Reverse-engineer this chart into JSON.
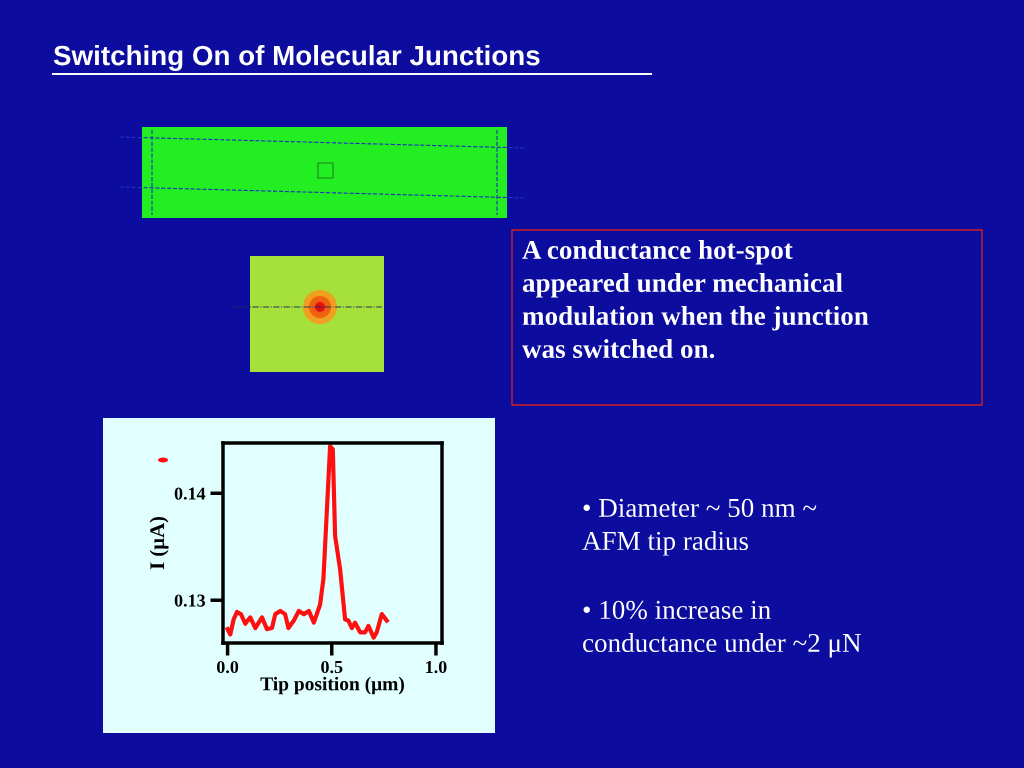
{
  "chart_data": {
    "type": "line",
    "title": "Switching On of Molecular Junctions",
    "xlabel": "Tip position (μm)",
    "ylabel": "I (μA)",
    "annotations": [
      "A conductance hot-spot\nappeared under mechanical\nmodulation when the junction\nwas switched on.",
      "• Diameter ~ 50 nm ~\nAFM tip radius",
      "• 10% increase in\nconductance under ~2 μN"
    ],
    "x": [
      0.0,
      0.013,
      0.029,
      0.045,
      0.064,
      0.085,
      0.109,
      0.133,
      0.165,
      0.189,
      0.213,
      0.229,
      0.253,
      0.276,
      0.292,
      0.318,
      0.342,
      0.366,
      0.39,
      0.414,
      0.444,
      0.46,
      0.476,
      0.492,
      0.505,
      0.516,
      0.54,
      0.564,
      0.58,
      0.596,
      0.612,
      0.636,
      0.66,
      0.676,
      0.701,
      0.716,
      0.74,
      0.764
    ],
    "series": [
      {
        "color": "#ff1010",
        "values": [
          0.1273,
          0.1268,
          0.1282,
          0.1289,
          0.1287,
          0.1278,
          0.1284,
          0.1274,
          0.1284,
          0.1273,
          0.1274,
          0.1287,
          0.129,
          0.1287,
          0.1274,
          0.1281,
          0.129,
          0.1287,
          0.129,
          0.1279,
          0.1296,
          0.132,
          0.1382,
          0.1444,
          0.1441,
          0.136,
          0.1329,
          0.1282,
          0.1281,
          0.1274,
          0.1279,
          0.127,
          0.127,
          0.1276,
          0.1265,
          0.127,
          0.1287,
          0.1281
        ]
      }
    ],
    "xlim": [
      -0.022,
      1.029
    ],
    "ylim": [
      0.126,
      0.1447
    ],
    "xticks": [
      {
        "value": 0,
        "label": "0.0"
      },
      {
        "value": 0.5,
        "label": "0.5"
      },
      {
        "value": 1,
        "label": "1.0"
      }
    ],
    "yticks": [
      0.13,
      0.14
    ],
    "grid": false,
    "legend": false,
    "line_style": "solid",
    "marker": "none"
  }
}
